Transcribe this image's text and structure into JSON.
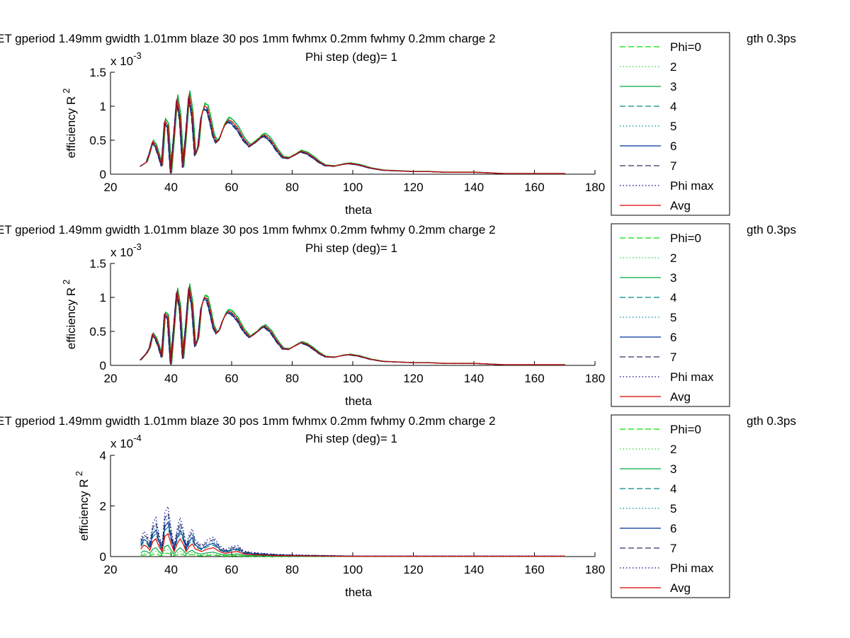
{
  "chart_data": [
    {
      "type": "line",
      "title": "ET gperiod 1.49mm gwidth 1.01mm blaze 30 pos 1mm fwhmx 0.2mm fwhmy 0.2mm charge 2",
      "title_right": "gth 0.3ps",
      "subtitle": "Phi step (deg)= 1",
      "xlabel": "theta",
      "ylabel": "efficiency R",
      "ylabel_sup": "2",
      "exponent_label": "x 10",
      "exponent_power": "-3",
      "xlim": [
        20,
        180
      ],
      "ylim": [
        0,
        0.0015
      ],
      "xticks": [
        "20",
        "40",
        "60",
        "80",
        "100",
        "120",
        "140",
        "160",
        "180"
      ],
      "yticks": [
        "0",
        "0.5",
        "1",
        "1.5"
      ],
      "ytick_values": [
        0,
        0.0005,
        0.001,
        0.0015
      ],
      "grid": false,
      "legend_position": "right",
      "avg_points": [
        [
          30,
          0.00012
        ],
        [
          32,
          0.00018
        ],
        [
          33,
          0.00032
        ],
        [
          34,
          0.00048
        ],
        [
          35,
          0.00042
        ],
        [
          36,
          0.00028
        ],
        [
          37,
          0.00012
        ],
        [
          38,
          0.00078
        ],
        [
          39,
          0.00072
        ],
        [
          40,
          2e-05
        ],
        [
          41,
          0.00055
        ],
        [
          42,
          0.00112
        ],
        [
          43,
          0.00085
        ],
        [
          44,
          0.0001
        ],
        [
          45,
          0.0006
        ],
        [
          46,
          0.00118
        ],
        [
          47,
          0.0009
        ],
        [
          48,
          0.00028
        ],
        [
          49,
          0.0004
        ],
        [
          50,
          0.00085
        ],
        [
          51,
          0.001
        ],
        [
          52,
          0.00098
        ],
        [
          53,
          0.0008
        ],
        [
          54,
          0.00058
        ],
        [
          55,
          0.00048
        ],
        [
          56,
          0.00052
        ],
        [
          57,
          0.00065
        ],
        [
          58,
          0.00075
        ],
        [
          59,
          0.0008
        ],
        [
          60,
          0.00078
        ],
        [
          62,
          0.00068
        ],
        [
          64,
          0.00052
        ],
        [
          66,
          0.00042
        ],
        [
          68,
          0.00048
        ],
        [
          70,
          0.00056
        ],
        [
          71,
          0.00058
        ],
        [
          73,
          0.0005
        ],
        [
          75,
          0.00036
        ],
        [
          77,
          0.00025
        ],
        [
          79,
          0.00024
        ],
        [
          81,
          0.00029
        ],
        [
          83,
          0.00034
        ],
        [
          85,
          0.00031
        ],
        [
          87,
          0.00025
        ],
        [
          89,
          0.00018
        ],
        [
          91,
          0.00013
        ],
        [
          94,
          0.00012
        ],
        [
          97,
          0.00015
        ],
        [
          99,
          0.00016
        ],
        [
          102,
          0.00014
        ],
        [
          106,
          9e-05
        ],
        [
          110,
          6e-05
        ],
        [
          115,
          5e-05
        ],
        [
          120,
          4e-05
        ],
        [
          125,
          4e-05
        ],
        [
          130,
          3e-05
        ],
        [
          135,
          3e-05
        ],
        [
          140,
          3e-05
        ],
        [
          145,
          2e-05
        ],
        [
          150,
          1e-05
        ],
        [
          155,
          1e-05
        ],
        [
          160,
          1e-05
        ],
        [
          165,
          1e-05
        ],
        [
          170,
          1e-05
        ]
      ],
      "series": [
        {
          "name": "Phi=0",
          "color": "#00e000",
          "dash": "dashed",
          "scale": 1.05,
          "shift": 0.3
        },
        {
          "name": "2",
          "color": "#33cc33",
          "dash": "dotted",
          "scale": 1.03,
          "shift": 0.2
        },
        {
          "name": "3",
          "color": "#00aa44",
          "dash": "solid",
          "scale": 1.04,
          "shift": 0.4
        },
        {
          "name": "4",
          "color": "#008888",
          "dash": "dashed",
          "scale": 0.98,
          "shift": -0.2
        },
        {
          "name": "5",
          "color": "#0088aa",
          "dash": "dotted",
          "scale": 0.97,
          "shift": -0.3
        },
        {
          "name": "6",
          "color": "#003399",
          "dash": "solid",
          "scale": 0.96,
          "shift": -0.4
        },
        {
          "name": "7",
          "color": "#333366",
          "dash": "dashed",
          "scale": 0.95,
          "shift": -0.5
        },
        {
          "name": "Phi max",
          "color": "#000088",
          "dash": "dotted",
          "scale": 0.97,
          "shift": -0.3
        },
        {
          "name": "Avg",
          "color": "#dd0000",
          "dash": "solid",
          "scale": 1.0,
          "shift": 0
        }
      ]
    },
    {
      "type": "line",
      "title": "ET gperiod 1.49mm gwidth 1.01mm blaze 30 pos 1mm fwhmx 0.2mm fwhmy 0.2mm charge 2",
      "title_right": "gth 0.3ps",
      "subtitle": "Phi step (deg)= 1",
      "xlabel": "theta",
      "ylabel": "efficiency R",
      "ylabel_sup": "2",
      "exponent_label": "x 10",
      "exponent_power": "-3",
      "xlim": [
        20,
        180
      ],
      "ylim": [
        0,
        0.0015
      ],
      "xticks": [
        "20",
        "40",
        "60",
        "80",
        "100",
        "120",
        "140",
        "160",
        "180"
      ],
      "yticks": [
        "0",
        "0.5",
        "1",
        "1.5"
      ],
      "ytick_values": [
        0,
        0.0005,
        0.001,
        0.0015
      ],
      "grid": false,
      "legend_position": "right",
      "avg_points": [
        [
          30,
          8e-05
        ],
        [
          32,
          0.00018
        ],
        [
          33,
          0.00026
        ],
        [
          34,
          0.00046
        ],
        [
          35,
          0.0004
        ],
        [
          36,
          0.00028
        ],
        [
          37,
          0.00012
        ],
        [
          38,
          0.00076
        ],
        [
          39,
          0.00072
        ],
        [
          40,
          2e-05
        ],
        [
          41,
          0.00055
        ],
        [
          42,
          0.0011
        ],
        [
          43,
          0.00085
        ],
        [
          44,
          0.0001
        ],
        [
          45,
          0.0006
        ],
        [
          46,
          0.00116
        ],
        [
          47,
          0.0009
        ],
        [
          48,
          0.00028
        ],
        [
          49,
          0.0004
        ],
        [
          50,
          0.00085
        ],
        [
          51,
          0.001
        ],
        [
          52,
          0.00098
        ],
        [
          53,
          0.0008
        ],
        [
          54,
          0.00058
        ],
        [
          55,
          0.00048
        ],
        [
          56,
          0.00052
        ],
        [
          57,
          0.00065
        ],
        [
          58,
          0.00075
        ],
        [
          59,
          0.0008
        ],
        [
          60,
          0.00078
        ],
        [
          62,
          0.00068
        ],
        [
          64,
          0.00052
        ],
        [
          66,
          0.00042
        ],
        [
          68,
          0.00048
        ],
        [
          70,
          0.00056
        ],
        [
          71,
          0.00058
        ],
        [
          73,
          0.0005
        ],
        [
          75,
          0.00036
        ],
        [
          77,
          0.00025
        ],
        [
          79,
          0.00024
        ],
        [
          81,
          0.00029
        ],
        [
          83,
          0.00034
        ],
        [
          85,
          0.00031
        ],
        [
          87,
          0.00025
        ],
        [
          89,
          0.00018
        ],
        [
          91,
          0.00013
        ],
        [
          94,
          0.00012
        ],
        [
          97,
          0.00015
        ],
        [
          99,
          0.00016
        ],
        [
          102,
          0.00014
        ],
        [
          106,
          9e-05
        ],
        [
          110,
          6e-05
        ],
        [
          115,
          5e-05
        ],
        [
          120,
          4e-05
        ],
        [
          125,
          4e-05
        ],
        [
          130,
          3e-05
        ],
        [
          135,
          3e-05
        ],
        [
          140,
          3e-05
        ],
        [
          145,
          2e-05
        ],
        [
          150,
          1e-05
        ],
        [
          155,
          1e-05
        ],
        [
          160,
          1e-05
        ],
        [
          165,
          1e-05
        ],
        [
          170,
          1e-05
        ]
      ],
      "series": [
        {
          "name": "Phi=0",
          "color": "#00e000",
          "dash": "dashed",
          "scale": 1.04,
          "shift": 0.3
        },
        {
          "name": "2",
          "color": "#33cc33",
          "dash": "dotted",
          "scale": 1.02,
          "shift": 0.2
        },
        {
          "name": "3",
          "color": "#00aa44",
          "dash": "solid",
          "scale": 1.03,
          "shift": 0.35
        },
        {
          "name": "4",
          "color": "#008888",
          "dash": "dashed",
          "scale": 0.99,
          "shift": -0.2
        },
        {
          "name": "5",
          "color": "#0088aa",
          "dash": "dotted",
          "scale": 0.98,
          "shift": -0.3
        },
        {
          "name": "6",
          "color": "#003399",
          "dash": "solid",
          "scale": 0.97,
          "shift": -0.4
        },
        {
          "name": "7",
          "color": "#333366",
          "dash": "dashed",
          "scale": 0.96,
          "shift": -0.5
        },
        {
          "name": "Phi max",
          "color": "#000088",
          "dash": "dotted",
          "scale": 0.98,
          "shift": -0.3
        },
        {
          "name": "Avg",
          "color": "#dd0000",
          "dash": "solid",
          "scale": 1.0,
          "shift": 0
        }
      ]
    },
    {
      "type": "line",
      "title": "ET gperiod 1.49mm gwidth 1.01mm blaze 30 pos 1mm fwhmx 0.2mm fwhmy 0.2mm charge 2",
      "title_right": "gth 0.3ps",
      "subtitle": "Phi step (deg)= 1",
      "xlabel": "theta",
      "ylabel": "efficiency R",
      "ylabel_sup": "2",
      "exponent_label": "x 10",
      "exponent_power": "-4",
      "xlim": [
        20,
        180
      ],
      "ylim": [
        0,
        0.0004
      ],
      "xticks": [
        "20",
        "40",
        "60",
        "80",
        "100",
        "120",
        "140",
        "160",
        "180"
      ],
      "yticks": [
        "0",
        "2",
        "4"
      ],
      "ytick_values": [
        0,
        0.0002,
        0.0004
      ],
      "grid": false,
      "legend_position": "right",
      "avg_points": [
        [
          30,
          3e-05
        ],
        [
          31,
          4.5e-05
        ],
        [
          32,
          4e-05
        ],
        [
          33,
          2.5e-05
        ],
        [
          34,
          6e-05
        ],
        [
          35,
          7e-05
        ],
        [
          36,
          4e-05
        ],
        [
          37,
          2e-05
        ],
        [
          38,
          8e-05
        ],
        [
          39,
          9e-05
        ],
        [
          40,
          5e-05
        ],
        [
          41,
          2e-05
        ],
        [
          42,
          5e-05
        ],
        [
          43,
          7e-05
        ],
        [
          44,
          5e-05
        ],
        [
          45,
          2e-05
        ],
        [
          46,
          4e-05
        ],
        [
          47,
          5e-05
        ],
        [
          48,
          3e-05
        ],
        [
          50,
          2e-05
        ],
        [
          52,
          3e-05
        ],
        [
          54,
          3.5e-05
        ],
        [
          56,
          2e-05
        ],
        [
          58,
          1.2e-05
        ],
        [
          60,
          1.8e-05
        ],
        [
          62,
          2e-05
        ],
        [
          64,
          1e-05
        ],
        [
          66,
          8e-06
        ],
        [
          70,
          6e-06
        ],
        [
          75,
          4e-06
        ],
        [
          80,
          3e-06
        ],
        [
          90,
          2e-06
        ],
        [
          100,
          1e-06
        ],
        [
          120,
          1e-06
        ],
        [
          140,
          1e-06
        ],
        [
          160,
          1e-06
        ],
        [
          170,
          1e-06
        ]
      ],
      "series": [
        {
          "name": "Phi=0",
          "color": "#00e000",
          "dash": "dashed",
          "scale": 0.15,
          "shift": 0
        },
        {
          "name": "2",
          "color": "#33cc33",
          "dash": "dotted",
          "scale": 0.3,
          "shift": 0
        },
        {
          "name": "3",
          "color": "#00aa44",
          "dash": "solid",
          "scale": 0.5,
          "shift": 0
        },
        {
          "name": "4",
          "color": "#008888",
          "dash": "dashed",
          "scale": 1.3,
          "shift": 0
        },
        {
          "name": "5",
          "color": "#0088aa",
          "dash": "dotted",
          "scale": 1.7,
          "shift": 0
        },
        {
          "name": "6",
          "color": "#003399",
          "dash": "solid",
          "scale": 1.5,
          "shift": 0
        },
        {
          "name": "7",
          "color": "#333366",
          "dash": "dashed",
          "scale": 1.9,
          "shift": 0
        },
        {
          "name": "Phi max",
          "color": "#000088",
          "dash": "dotted",
          "scale": 2.2,
          "shift": 0
        },
        {
          "name": "Avg",
          "color": "#dd0000",
          "dash": "solid",
          "scale": 1.0,
          "shift": 0
        }
      ]
    }
  ]
}
